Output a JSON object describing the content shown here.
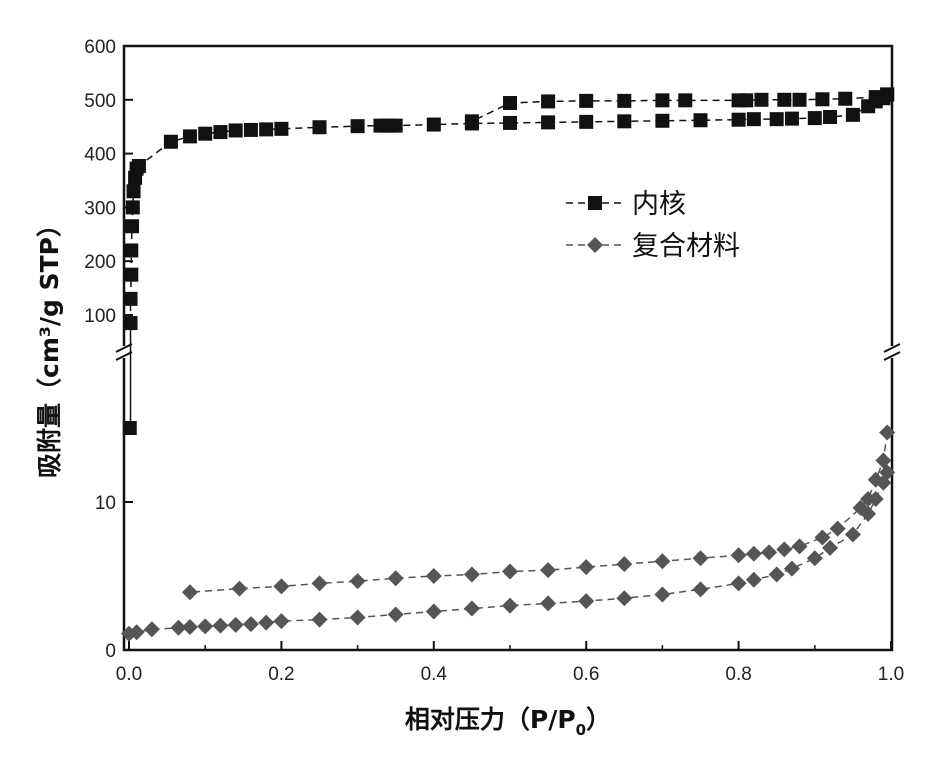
{
  "chart_data": {
    "type": "scatter",
    "xlabel": "相对压力（P/P",
    "xlabel_sub": "0",
    "xlabel_end": "）",
    "ylabel": "吸附量（cm³/g STP）",
    "xlim": [
      0.0,
      1.0
    ],
    "y_axis_break": true,
    "ylim_lower": [
      0,
      20
    ],
    "ylim_upper": [
      0,
      600
    ],
    "x_ticks": [
      "0.0",
      "0.2",
      "0.4",
      "0.6",
      "0.8",
      "1.0"
    ],
    "y_ticks_lower": [
      "0",
      "10"
    ],
    "y_ticks_upper": [
      "100",
      "200",
      "300",
      "400",
      "500",
      "600"
    ],
    "legend_position": "upper-right",
    "series": [
      {
        "name": "内核",
        "marker": "square",
        "color": "#111111",
        "adsorption": [
          [
            0.001,
            15
          ],
          [
            0.002,
            85
          ],
          [
            0.002,
            130
          ],
          [
            0.003,
            175
          ],
          [
            0.003,
            220
          ],
          [
            0.004,
            265
          ],
          [
            0.005,
            300
          ],
          [
            0.006,
            330
          ],
          [
            0.008,
            355
          ],
          [
            0.01,
            372
          ],
          [
            0.013,
            377
          ],
          [
            0.055,
            422
          ],
          [
            0.08,
            432
          ],
          [
            0.1,
            437
          ],
          [
            0.12,
            440
          ],
          [
            0.14,
            443
          ],
          [
            0.16,
            444
          ],
          [
            0.18,
            445
          ],
          [
            0.2,
            446
          ],
          [
            0.25,
            449
          ],
          [
            0.3,
            451
          ],
          [
            0.33,
            452
          ],
          [
            0.34,
            452
          ],
          [
            0.35,
            452
          ],
          [
            0.4,
            454
          ],
          [
            0.45,
            456
          ],
          [
            0.5,
            457
          ],
          [
            0.55,
            458
          ],
          [
            0.6,
            459
          ],
          [
            0.65,
            460
          ],
          [
            0.7,
            461
          ],
          [
            0.75,
            462
          ],
          [
            0.8,
            463
          ],
          [
            0.82,
            464
          ],
          [
            0.85,
            464
          ],
          [
            0.87,
            465
          ],
          [
            0.9,
            466
          ],
          [
            0.92,
            468
          ],
          [
            0.95,
            472
          ],
          [
            0.97,
            488
          ],
          [
            0.98,
            497
          ],
          [
            0.99,
            503
          ],
          [
            0.995,
            510
          ]
        ],
        "desorption": [
          [
            0.995,
            510
          ],
          [
            0.98,
            505
          ],
          [
            0.94,
            502
          ],
          [
            0.91,
            501
          ],
          [
            0.88,
            500
          ],
          [
            0.86,
            500
          ],
          [
            0.83,
            500
          ],
          [
            0.81,
            499
          ],
          [
            0.8,
            499
          ],
          [
            0.73,
            499
          ],
          [
            0.7,
            499
          ],
          [
            0.65,
            498
          ],
          [
            0.6,
            498
          ],
          [
            0.55,
            497
          ],
          [
            0.5,
            494
          ],
          [
            0.45,
            460
          ]
        ]
      },
      {
        "name": "复合材料",
        "marker": "diamond",
        "color": "#555555",
        "adsorption": [
          [
            0.0,
            1.1
          ],
          [
            0.01,
            1.2
          ],
          [
            0.03,
            1.4
          ],
          [
            0.065,
            1.5
          ],
          [
            0.08,
            1.55
          ],
          [
            0.1,
            1.6
          ],
          [
            0.12,
            1.65
          ],
          [
            0.14,
            1.7
          ],
          [
            0.16,
            1.75
          ],
          [
            0.18,
            1.85
          ],
          [
            0.2,
            1.95
          ],
          [
            0.25,
            2.05
          ],
          [
            0.3,
            2.2
          ],
          [
            0.35,
            2.4
          ],
          [
            0.4,
            2.6
          ],
          [
            0.45,
            2.8
          ],
          [
            0.5,
            3.0
          ],
          [
            0.55,
            3.15
          ],
          [
            0.6,
            3.3
          ],
          [
            0.65,
            3.5
          ],
          [
            0.7,
            3.75
          ],
          [
            0.75,
            4.1
          ],
          [
            0.8,
            4.5
          ],
          [
            0.82,
            4.75
          ],
          [
            0.85,
            5.1
          ],
          [
            0.87,
            5.5
          ],
          [
            0.9,
            6.2
          ],
          [
            0.92,
            6.9
          ],
          [
            0.95,
            7.8
          ],
          [
            0.97,
            9.2
          ],
          [
            0.98,
            10.2
          ],
          [
            0.99,
            11.3
          ],
          [
            0.995,
            12.0
          ]
        ],
        "desorption": [
          [
            0.995,
            14.7
          ],
          [
            0.99,
            12.8
          ],
          [
            0.98,
            11.5
          ],
          [
            0.97,
            10.2
          ],
          [
            0.96,
            9.6
          ],
          [
            0.93,
            8.2
          ],
          [
            0.91,
            7.6
          ],
          [
            0.88,
            7.0
          ],
          [
            0.86,
            6.8
          ],
          [
            0.84,
            6.6
          ],
          [
            0.82,
            6.5
          ],
          [
            0.8,
            6.4
          ],
          [
            0.75,
            6.2
          ],
          [
            0.7,
            6.0
          ],
          [
            0.65,
            5.8
          ],
          [
            0.6,
            5.6
          ],
          [
            0.55,
            5.4
          ],
          [
            0.5,
            5.3
          ],
          [
            0.45,
            5.1
          ],
          [
            0.4,
            5.0
          ],
          [
            0.35,
            4.85
          ],
          [
            0.3,
            4.65
          ],
          [
            0.25,
            4.5
          ],
          [
            0.2,
            4.3
          ],
          [
            0.145,
            4.15
          ],
          [
            0.08,
            3.9
          ]
        ]
      }
    ]
  }
}
